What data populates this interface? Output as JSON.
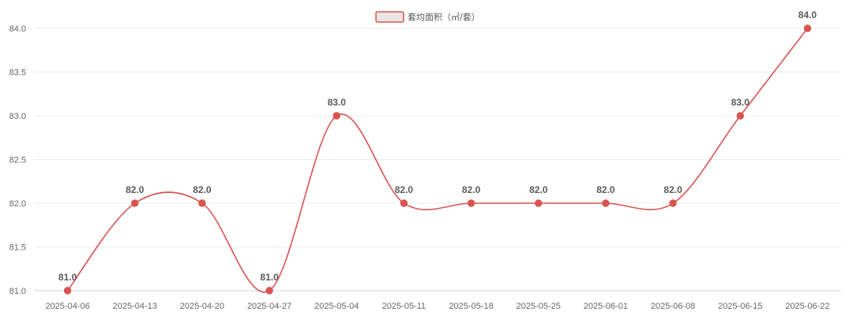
{
  "chart_data": {
    "type": "line",
    "categories": [
      "2025-04-06",
      "2025-04-13",
      "2025-04-20",
      "2025-04-27",
      "2025-05-04",
      "2025-05-11",
      "2025-05-18",
      "2025-05-25",
      "2025-06-01",
      "2025-06-08",
      "2025-06-15",
      "2025-06-22"
    ],
    "series": [
      {
        "name": "套均面积（㎡/套）",
        "values": [
          81.0,
          82.0,
          82.0,
          81.0,
          83.0,
          82.0,
          82.0,
          82.0,
          82.0,
          82.0,
          83.0,
          84.0
        ],
        "color": "#d9534f"
      }
    ],
    "data_labels": [
      "81.0",
      "82.0",
      "82.0",
      "81.0",
      "83.0",
      "82.0",
      "82.0",
      "82.0",
      "82.0",
      "82.0",
      "83.0",
      "84.0"
    ],
    "ylim": [
      81.0,
      84.0
    ],
    "yticks": [
      81.0,
      81.5,
      82.0,
      82.5,
      83.0,
      83.5,
      84.0
    ],
    "ytick_labels": [
      "81.0",
      "81.5",
      "82.0",
      "82.5",
      "83.0",
      "83.5",
      "84.0"
    ],
    "grid": true,
    "legend_position": "top-center",
    "smooth": true
  }
}
